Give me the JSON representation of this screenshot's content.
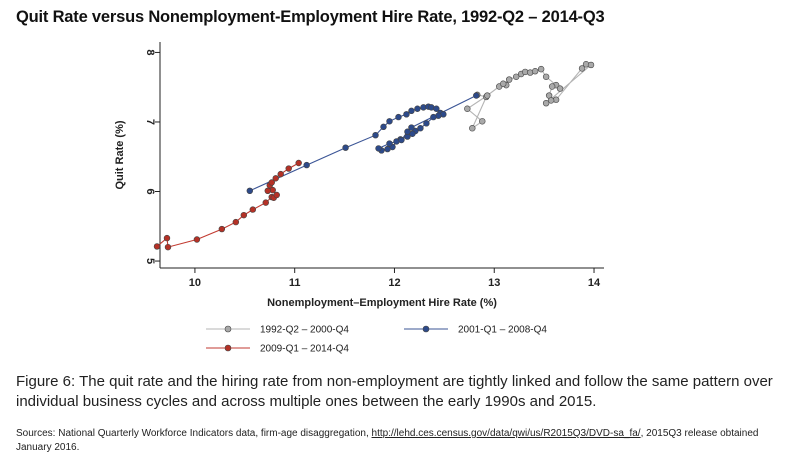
{
  "title": "Quit Rate versus Nonemployment-Employment Hire Rate, 1992-Q2 – 2014-Q3",
  "caption": "Figure 6: The quit rate and the hiring rate from non-employment are tightly linked and follow the same pattern over individual business cycles and across multiple ones between the early 1990s and 2015.",
  "sources": {
    "prefix": "Sources: National Quarterly Workforce Indicators data, firm-age disaggregation, ",
    "link_text": "http://lehd.ces.census.gov/data/qwi/us/R2015Q3/DVD-sa_fa/",
    "suffix": ", 2015Q3 release obtained January 2016."
  },
  "chart_data": {
    "type": "line",
    "xlabel": "Nonemployment–Employment Hire Rate (%)",
    "ylabel": "Quit Rate (%)",
    "xlim": [
      9.65,
      14.1
    ],
    "ylim": [
      4.9,
      8.15
    ],
    "xticks": [
      10,
      11,
      12,
      13,
      14
    ],
    "xtick_labels": [
      "10",
      "11",
      "12",
      "13",
      "14"
    ],
    "yticks": [
      5,
      6,
      7,
      8
    ],
    "ytick_labels": [
      "5",
      "6",
      "7",
      "8"
    ],
    "grid": false,
    "legend_position": "bottom",
    "series": [
      {
        "name": "1992-Q2 – 2000-Q4",
        "color": "#b4b4b4",
        "marker_fill": "#a9a9a9",
        "x": [
          12.83,
          12.92,
          12.78,
          12.88,
          12.73,
          12.93,
          13.05,
          13.12,
          13.09,
          13.15,
          13.22,
          13.27,
          13.31,
          13.36,
          13.41,
          13.47,
          13.52,
          13.62,
          13.66,
          13.58,
          13.55,
          13.62,
          13.88,
          13.92,
          13.97,
          13.52,
          13.57
        ],
        "y": [
          7.39,
          7.36,
          6.91,
          7.01,
          7.19,
          7.38,
          7.51,
          7.53,
          7.55,
          7.61,
          7.65,
          7.69,
          7.72,
          7.71,
          7.73,
          7.76,
          7.65,
          7.53,
          7.48,
          7.51,
          7.38,
          7.32,
          7.77,
          7.83,
          7.82,
          7.27,
          7.31
        ]
      },
      {
        "name": "2001-Q1 – 2008-Q4",
        "color": "#3b5596",
        "marker_fill": "#2d4a8a",
        "x": [
          10.55,
          11.12,
          11.51,
          11.81,
          11.89,
          11.95,
          12.04,
          12.12,
          12.17,
          12.23,
          12.29,
          12.34,
          12.37,
          12.42,
          12.46,
          12.49,
          12.44,
          12.39,
          12.32,
          12.26,
          12.21,
          12.18,
          12.13,
          12.06,
          12.02,
          11.98,
          11.93,
          11.87,
          11.84,
          11.95,
          12.07,
          12.13,
          12.17,
          12.82
        ],
        "y": [
          6.01,
          6.38,
          6.63,
          6.81,
          6.93,
          7.01,
          7.07,
          7.11,
          7.16,
          7.19,
          7.21,
          7.22,
          7.21,
          7.19,
          7.13,
          7.11,
          7.09,
          7.07,
          6.98,
          6.91,
          6.87,
          6.83,
          6.79,
          6.75,
          6.72,
          6.64,
          6.61,
          6.59,
          6.62,
          6.69,
          6.74,
          6.86,
          6.92,
          7.38
        ]
      },
      {
        "name": "2009-Q1 – 2014-Q4",
        "color": "#c23a30",
        "marker_fill": "#b53126",
        "x": [
          9.62,
          9.72,
          9.73,
          10.02,
          10.27,
          10.41,
          10.49,
          10.58,
          10.71,
          10.77,
          10.79,
          10.82,
          10.78,
          10.73,
          10.75,
          10.77,
          10.81,
          10.86,
          10.94,
          11.04
        ],
        "y": [
          5.21,
          5.33,
          5.2,
          5.31,
          5.46,
          5.56,
          5.66,
          5.74,
          5.84,
          5.92,
          5.91,
          5.95,
          6.02,
          6.01,
          6.09,
          6.13,
          6.19,
          6.25,
          6.33,
          6.41
        ]
      }
    ]
  }
}
